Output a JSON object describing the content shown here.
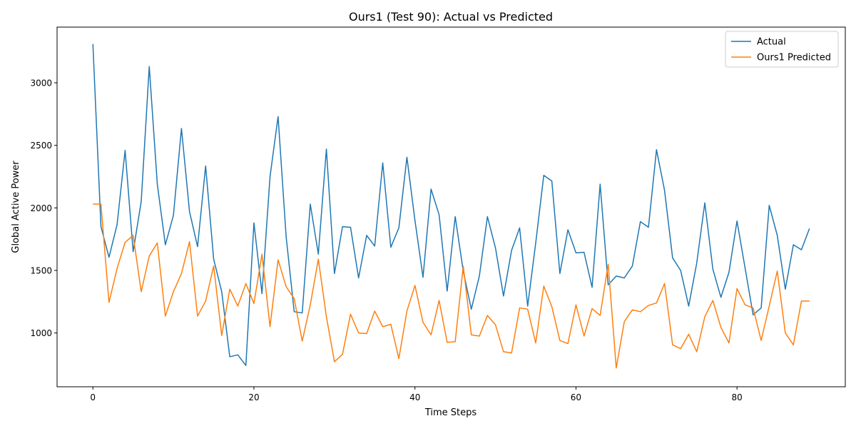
{
  "chart_data": {
    "type": "line",
    "title": "Ours1 (Test 90): Actual vs Predicted",
    "xlabel": "Time Steps",
    "ylabel": "Global Active Power",
    "xlim": [
      -4.45,
      93.45
    ],
    "ylim": [
      570,
      3445
    ],
    "xticks": [
      0,
      20,
      40,
      60,
      80
    ],
    "yticks": [
      1000,
      1500,
      2000,
      2500,
      3000
    ],
    "grid": false,
    "legend_position": "top-right",
    "colors": {
      "Actual": "#1f77b4",
      "Ours1 Predicted": "#ff7f0e"
    },
    "x": [
      0,
      1,
      2,
      3,
      4,
      5,
      6,
      7,
      8,
      9,
      10,
      11,
      12,
      13,
      14,
      15,
      16,
      17,
      18,
      19,
      20,
      21,
      22,
      23,
      24,
      25,
      26,
      27,
      28,
      29,
      30,
      31,
      32,
      33,
      34,
      35,
      36,
      37,
      38,
      39,
      40,
      41,
      42,
      43,
      44,
      45,
      46,
      47,
      48,
      49,
      50,
      51,
      52,
      53,
      54,
      55,
      56,
      57,
      58,
      59,
      60,
      61,
      62,
      63,
      64,
      65,
      66,
      67,
      68,
      69,
      70,
      71,
      72,
      73,
      74,
      75,
      76,
      77,
      78,
      79,
      80,
      81,
      82,
      83,
      84,
      85,
      86,
      87,
      88,
      89
    ],
    "series": [
      {
        "name": "Actual",
        "values": [
          3310,
          1850,
          1605,
          1865,
          2460,
          1650,
          2050,
          3130,
          2190,
          1705,
          1940,
          2635,
          1970,
          1690,
          2335,
          1590,
          1330,
          810,
          825,
          740,
          1880,
          1315,
          2250,
          2730,
          1770,
          1170,
          1160,
          2030,
          1630,
          2470,
          1475,
          1850,
          1845,
          1440,
          1780,
          1695,
          2360,
          1685,
          1840,
          2405,
          1900,
          1445,
          2150,
          1945,
          1335,
          1930,
          1495,
          1190,
          1455,
          1930,
          1680,
          1295,
          1660,
          1840,
          1215,
          1720,
          2260,
          2215,
          1475,
          1825,
          1640,
          1645,
          1365,
          2190,
          1385,
          1455,
          1440,
          1535,
          1890,
          1845,
          2465,
          2140,
          1600,
          1500,
          1215,
          1560,
          2040,
          1510,
          1285,
          1485,
          1895,
          1520,
          1145,
          1200,
          2020,
          1780,
          1350,
          1705,
          1665,
          1835
        ]
      },
      {
        "name": "Ours1 Predicted",
        "values": [
          2030,
          2030,
          1245,
          1515,
          1725,
          1780,
          1330,
          1615,
          1720,
          1135,
          1330,
          1475,
          1730,
          1135,
          1255,
          1535,
          980,
          1350,
          1215,
          1395,
          1235,
          1630,
          1050,
          1585,
          1370,
          1275,
          935,
          1225,
          1590,
          1130,
          770,
          830,
          1150,
          1000,
          995,
          1175,
          1050,
          1070,
          795,
          1175,
          1380,
          1085,
          985,
          1260,
          925,
          930,
          1535,
          985,
          975,
          1140,
          1065,
          850,
          840,
          1200,
          1190,
          920,
          1375,
          1210,
          940,
          915,
          1225,
          975,
          1195,
          1140,
          1550,
          720,
          1090,
          1185,
          1170,
          1220,
          1240,
          1395,
          905,
          875,
          990,
          850,
          1130,
          1260,
          1045,
          920,
          1355,
          1225,
          1200,
          940,
          1215,
          1495,
          1000,
          905,
          1255,
          1255
        ]
      }
    ]
  }
}
